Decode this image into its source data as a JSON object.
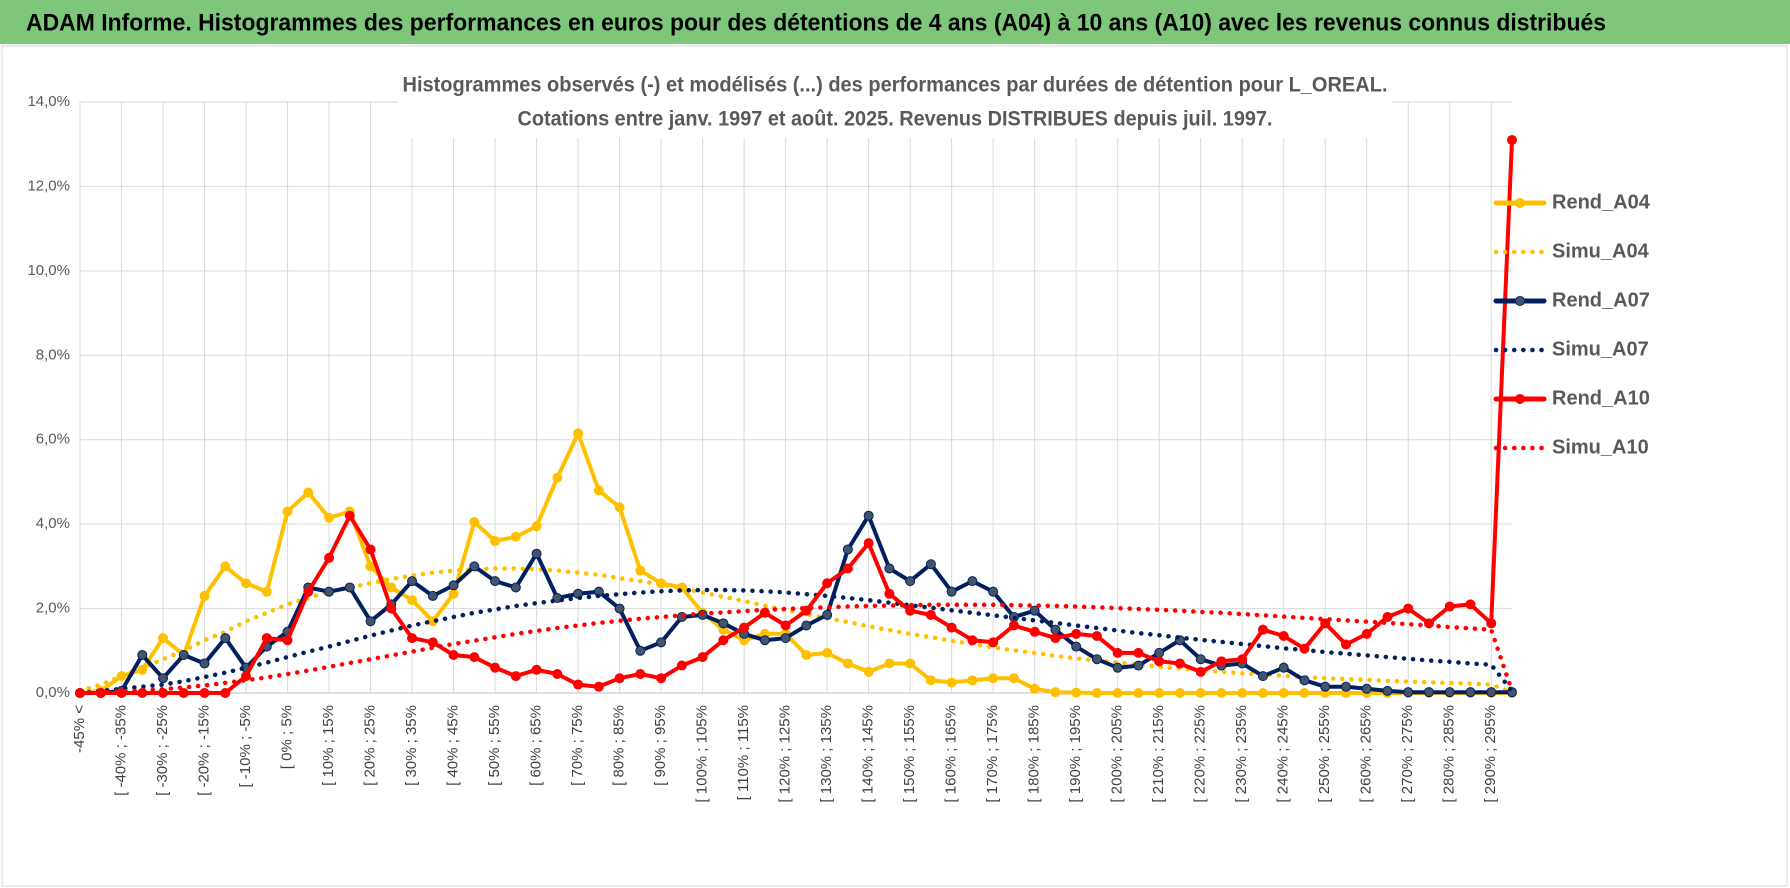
{
  "header": "ADAM Informe. Histogrammes des performances en euros pour des détentions de 4 ans (A04) à 10 ans (A10) avec les revenus connus distribués",
  "chart_data": {
    "type": "line",
    "title": "Histogrammes observés (-) et modélisés (...) des performances par durées de détention pour L_OREAL.",
    "subtitle": "Cotations entre janv. 1997 et août. 2025. Revenus DISTRIBUES depuis juil. 1997.",
    "categories": [
      "-45% <",
      null,
      "[ -40% ; -35%",
      null,
      "[ -30% ; -25%",
      null,
      "[ -20% ; -15%",
      null,
      "[ -10% ; -5%",
      null,
      "[ 0% ; 5%",
      null,
      "[ 10% ; 15%",
      null,
      "[ 20% ; 25%",
      null,
      "[ 30% ; 35%",
      null,
      "[ 40% ; 45%",
      null,
      "[ 50% ; 55%",
      null,
      "[ 60% ; 65%",
      null,
      "[ 70% ; 75%",
      null,
      "[ 80% ; 85%",
      null,
      "[ 90% ; 95%",
      null,
      "[ 100% ; 105%",
      null,
      "[ 110% ; 115%",
      null,
      "[ 120% ; 125%",
      null,
      "[ 130% ; 135%",
      null,
      "[ 140% ; 145%",
      null,
      "[ 150% ; 155%",
      null,
      "[ 160% ; 165%",
      null,
      "[ 170% ; 175%",
      null,
      "[ 180% ; 185%",
      null,
      "[ 190% ; 195%",
      null,
      "[ 200% ; 205%",
      null,
      "[ 210% ; 215%",
      null,
      "[ 220% ; 225%",
      null,
      "[ 230% ; 235%",
      null,
      "[ 240% ; 245%",
      null,
      "[ 250% ; 255%",
      null,
      "[ 260% ; 265%",
      null,
      "[ 270% ; 275%",
      null,
      "[ 280% ; 285%",
      null,
      "[ 290% ; 295%",
      null
    ],
    "series": [
      {
        "name": "Rend_A04",
        "color": "#FFC000",
        "dash": false,
        "markers": true,
        "values": [
          0,
          0.05,
          0.4,
          0.55,
          1.3,
          0.9,
          2.3,
          3.0,
          2.6,
          2.4,
          4.3,
          4.75,
          4.15,
          4.3,
          3.0,
          2.5,
          2.2,
          1.7,
          2.35,
          4.05,
          3.6,
          3.7,
          3.95,
          5.1,
          6.15,
          4.8,
          4.4,
          2.9,
          2.6,
          2.5,
          1.9,
          1.5,
          1.25,
          1.4,
          1.4,
          0.9,
          0.95,
          0.7,
          0.5,
          0.7,
          0.7,
          0.3,
          0.25,
          0.3,
          0.35,
          0.35,
          0.1,
          0.02,
          0.01,
          0,
          0,
          0,
          0,
          0,
          0,
          0,
          0,
          0,
          0,
          0,
          0,
          0,
          0,
          0,
          0,
          0,
          0,
          0,
          0,
          0
        ]
      },
      {
        "name": "Simu_A04",
        "color": "#FFC000",
        "dash": true,
        "markers": false,
        "values": [
          0.05,
          0.2,
          0.4,
          0.6,
          0.8,
          1.0,
          1.25,
          1.45,
          1.7,
          1.9,
          2.1,
          2.25,
          2.4,
          2.5,
          2.6,
          2.7,
          2.78,
          2.85,
          2.9,
          2.93,
          2.95,
          2.95,
          2.93,
          2.9,
          2.85,
          2.8,
          2.72,
          2.65,
          2.57,
          2.48,
          2.38,
          2.28,
          2.18,
          2.07,
          1.97,
          1.87,
          1.77,
          1.68,
          1.58,
          1.49,
          1.4,
          1.32,
          1.24,
          1.16,
          1.08,
          1.01,
          0.95,
          0.88,
          0.82,
          0.77,
          0.72,
          0.67,
          0.62,
          0.58,
          0.54,
          0.5,
          0.47,
          0.44,
          0.41,
          0.38,
          0.35,
          0.33,
          0.31,
          0.29,
          0.27,
          0.25,
          0.24,
          0.22,
          0.2,
          0.02
        ]
      },
      {
        "name": "Rend_A07",
        "color": "#002060",
        "dash": false,
        "markers": true,
        "values": [
          0,
          0,
          0.05,
          0.9,
          0.35,
          0.9,
          0.7,
          1.3,
          0.6,
          1.1,
          1.45,
          2.5,
          2.4,
          2.5,
          1.7,
          2.1,
          2.65,
          2.3,
          2.55,
          3.0,
          2.65,
          2.5,
          3.3,
          2.25,
          2.35,
          2.4,
          2.0,
          1.0,
          1.2,
          1.8,
          1.85,
          1.65,
          1.4,
          1.25,
          1.3,
          1.6,
          1.85,
          3.4,
          4.2,
          2.95,
          2.65,
          3.05,
          2.4,
          2.65,
          2.4,
          1.8,
          1.95,
          1.5,
          1.1,
          0.8,
          0.6,
          0.65,
          0.95,
          1.25,
          0.8,
          0.65,
          0.7,
          0.4,
          0.6,
          0.3,
          0.15,
          0.15,
          0.1,
          0.05,
          0.02,
          0.02,
          0.02,
          0.02,
          0.02,
          0.02
        ]
      },
      {
        "name": "Simu_A07",
        "color": "#002060",
        "dash": true,
        "markers": false,
        "values": [
          0,
          0.05,
          0.1,
          0.15,
          0.2,
          0.28,
          0.38,
          0.48,
          0.6,
          0.72,
          0.85,
          0.98,
          1.1,
          1.23,
          1.36,
          1.48,
          1.6,
          1.7,
          1.8,
          1.9,
          1.98,
          2.06,
          2.13,
          2.19,
          2.25,
          2.3,
          2.34,
          2.38,
          2.41,
          2.43,
          2.44,
          2.44,
          2.43,
          2.41,
          2.38,
          2.34,
          2.3,
          2.25,
          2.2,
          2.14,
          2.08,
          2.02,
          1.96,
          1.9,
          1.84,
          1.78,
          1.72,
          1.66,
          1.6,
          1.54,
          1.48,
          1.42,
          1.37,
          1.31,
          1.26,
          1.21,
          1.16,
          1.11,
          1.06,
          1.02,
          0.97,
          0.93,
          0.89,
          0.85,
          0.81,
          0.77,
          0.74,
          0.7,
          0.67,
          0.05
        ]
      },
      {
        "name": "Rend_A10",
        "color": "#FF0000",
        "dash": false,
        "markers": true,
        "values": [
          0,
          0,
          0,
          0,
          0,
          0,
          0,
          0,
          0.4,
          1.3,
          1.25,
          2.4,
          3.2,
          4.2,
          3.4,
          2.0,
          1.3,
          1.2,
          0.9,
          0.85,
          0.6,
          0.4,
          0.55,
          0.45,
          0.2,
          0.15,
          0.35,
          0.45,
          0.35,
          0.65,
          0.85,
          1.25,
          1.55,
          1.9,
          1.6,
          1.95,
          2.6,
          2.95,
          3.55,
          2.35,
          1.95,
          1.85,
          1.55,
          1.25,
          1.2,
          1.6,
          1.45,
          1.3,
          1.4,
          1.35,
          0.95,
          0.95,
          0.75,
          0.7,
          0.5,
          0.75,
          0.8,
          1.5,
          1.35,
          1.05,
          1.65,
          1.15,
          1.4,
          1.8,
          2.0,
          1.65,
          2.05,
          2.1,
          1.65,
          13.1
        ]
      },
      {
        "name": "Simu_A10",
        "color": "#FF0000",
        "dash": true,
        "markers": false,
        "values": [
          0,
          0.02,
          0.04,
          0.06,
          0.09,
          0.13,
          0.18,
          0.24,
          0.3,
          0.37,
          0.45,
          0.53,
          0.62,
          0.71,
          0.8,
          0.89,
          0.98,
          1.07,
          1.16,
          1.24,
          1.32,
          1.4,
          1.47,
          1.54,
          1.6,
          1.66,
          1.71,
          1.76,
          1.8,
          1.84,
          1.88,
          1.91,
          1.94,
          1.97,
          1.99,
          2.01,
          2.03,
          2.05,
          2.06,
          2.07,
          2.08,
          2.09,
          2.09,
          2.09,
          2.09,
          2.08,
          2.07,
          2.06,
          2.05,
          2.03,
          2.01,
          1.99,
          1.97,
          1.95,
          1.92,
          1.9,
          1.87,
          1.84,
          1.81,
          1.78,
          1.75,
          1.72,
          1.69,
          1.66,
          1.63,
          1.6,
          1.56,
          1.53,
          1.5,
          0.05
        ]
      }
    ],
    "ylim": [
      0,
      14
    ],
    "yticks": [
      {
        "value": 0,
        "label": "0,0%"
      },
      {
        "value": 2,
        "label": "2,0%"
      },
      {
        "value": 4,
        "label": "4,0%"
      },
      {
        "value": 6,
        "label": "6,0%"
      },
      {
        "value": 8,
        "label": "8,0%"
      },
      {
        "value": 10,
        "label": "10,0%"
      },
      {
        "value": 12,
        "label": "12,0%"
      },
      {
        "value": 14,
        "label": "14,0%"
      }
    ],
    "grid": true,
    "legend": "right"
  }
}
